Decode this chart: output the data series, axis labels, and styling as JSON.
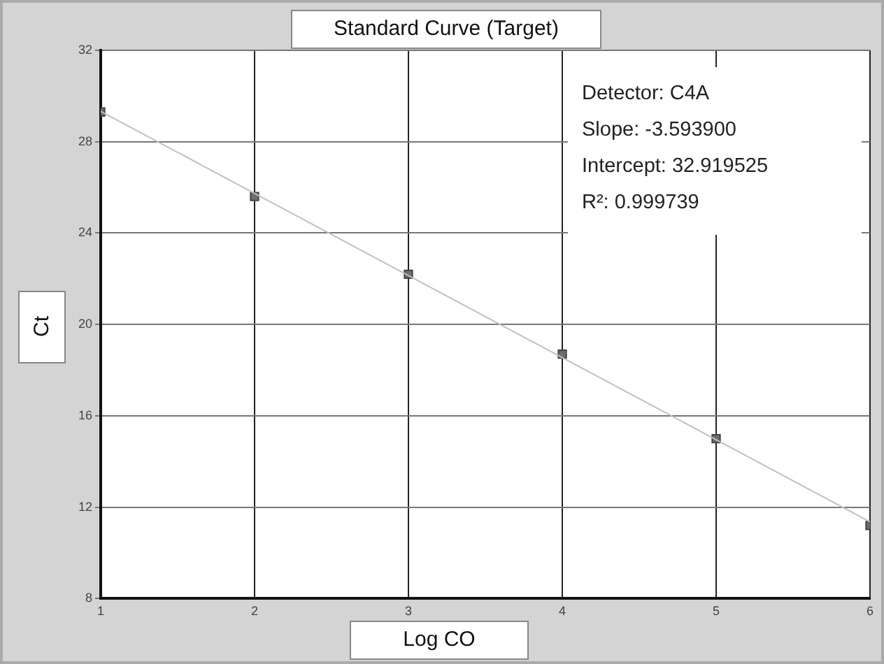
{
  "chart_data": {
    "type": "scatter",
    "title": "Standard Curve (Target)",
    "xlabel": "Log CO",
    "ylabel": "Ct",
    "annotations": [
      "Detector: C4A",
      "Slope: -3.593900",
      "Intercept: 32.919525",
      "R²: 0.999739"
    ],
    "series": [
      {
        "type": "line",
        "x": [
          1,
          6
        ],
        "values": [
          29.33,
          11.36
        ],
        "color": "#c0c0c0",
        "marker": "none"
      },
      {
        "x": [
          1,
          2,
          3,
          4,
          5,
          6
        ],
        "values": [
          29.3,
          25.6,
          22.2,
          18.7,
          15.0,
          11.2
        ],
        "color": "#6e6e6e",
        "marker": "square"
      }
    ],
    "xlim": [
      1,
      6
    ],
    "xticks": [
      1,
      2,
      3,
      4,
      5,
      6
    ],
    "ylim": [
      8,
      32
    ],
    "yticks": [
      8,
      12,
      16,
      20,
      24,
      28,
      32
    ],
    "grid": true,
    "legend": false
  }
}
